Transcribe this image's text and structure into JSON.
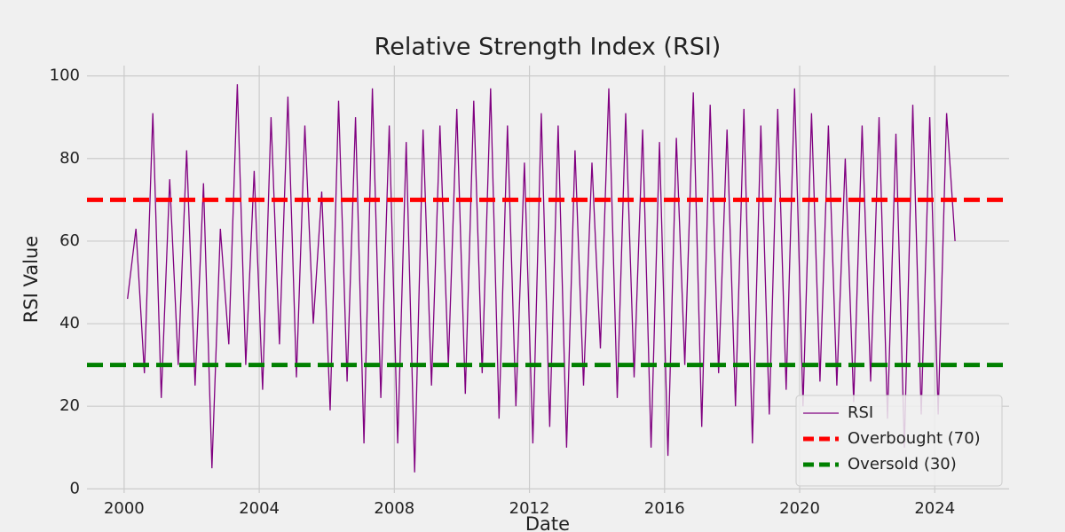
{
  "chart_data": {
    "type": "line",
    "title": "Relative Strength Index (RSI)",
    "x_label": "Date",
    "y_label": "RSI Value",
    "x": [
      2000.1,
      2000.35,
      2000.6,
      2000.85,
      2001.1,
      2001.35,
      2001.6,
      2001.85,
      2002.1,
      2002.35,
      2002.6,
      2002.85,
      2003.1,
      2003.35,
      2003.6,
      2003.85,
      2004.1,
      2004.35,
      2004.6,
      2004.85,
      2005.1,
      2005.35,
      2005.6,
      2005.85,
      2006.1,
      2006.35,
      2006.6,
      2006.85,
      2007.1,
      2007.35,
      2007.6,
      2007.85,
      2008.1,
      2008.35,
      2008.6,
      2008.85,
      2009.1,
      2009.35,
      2009.6,
      2009.85,
      2010.1,
      2010.35,
      2010.6,
      2010.85,
      2011.1,
      2011.35,
      2011.6,
      2011.85,
      2012.1,
      2012.35,
      2012.6,
      2012.85,
      2013.1,
      2013.35,
      2013.6,
      2013.85,
      2014.1,
      2014.35,
      2014.6,
      2014.85,
      2015.1,
      2015.35,
      2015.6,
      2015.85,
      2016.1,
      2016.35,
      2016.6,
      2016.85,
      2017.1,
      2017.35,
      2017.6,
      2017.85,
      2018.1,
      2018.35,
      2018.6,
      2018.85,
      2019.1,
      2019.35,
      2019.6,
      2019.85,
      2020.1,
      2020.35,
      2020.6,
      2020.85,
      2021.1,
      2021.35,
      2021.6,
      2021.85,
      2022.1,
      2022.35,
      2022.6,
      2022.85,
      2023.1,
      2023.35,
      2023.6,
      2023.85,
      2024.1,
      2024.35,
      2024.6
    ],
    "series": [
      {
        "name": "RSI",
        "color": "purple",
        "values": [
          46,
          63,
          28,
          91,
          22,
          75,
          30,
          82,
          25,
          74,
          5,
          63,
          35,
          98,
          30,
          77,
          24,
          90,
          35,
          95,
          27,
          88,
          40,
          72,
          19,
          94,
          26,
          90,
          11,
          97,
          22,
          88,
          11,
          84,
          4,
          87,
          25,
          88,
          30,
          92,
          23,
          94,
          28,
          97,
          17,
          88,
          20,
          79,
          11,
          91,
          15,
          88,
          10,
          82,
          25,
          79,
          34,
          97,
          22,
          91,
          27,
          87,
          10,
          84,
          8,
          85,
          30,
          96,
          15,
          93,
          28,
          87,
          20,
          92,
          11,
          88,
          18,
          92,
          24,
          97,
          20,
          91,
          26,
          88,
          25,
          80,
          21,
          88,
          26,
          90,
          17,
          86,
          10,
          93,
          18,
          90,
          18,
          91,
          60
        ]
      }
    ],
    "reference_lines": [
      {
        "name": "Overbought (70)",
        "value": 70,
        "color": "red"
      },
      {
        "name": "Oversold (30)",
        "value": 30,
        "color": "green"
      }
    ],
    "xlim": [
      1998.9,
      2026.2
    ],
    "ylim": [
      -1,
      102.5
    ],
    "xticks": [
      2000,
      2004,
      2008,
      2012,
      2016,
      2020,
      2024
    ],
    "yticks": [
      0,
      20,
      40,
      60,
      80,
      100
    ],
    "grid": true,
    "legend_position": "lower right"
  }
}
